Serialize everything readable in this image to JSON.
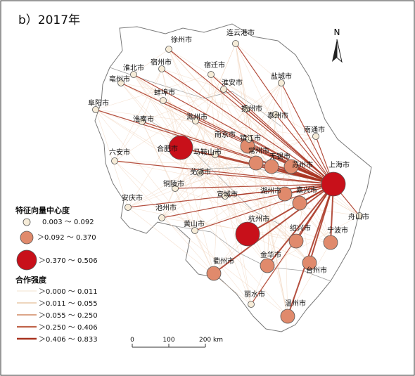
{
  "panel_title": "b）2017年",
  "north_label": "N",
  "colors": {
    "level1_fill": "#f6ecd8",
    "level2_fill": "#e08a6c",
    "level3_fill": "#c8101a",
    "flow_light": "#f1d6c0",
    "flow_dark": "#a8321f",
    "background": "#ffffff"
  },
  "cities": [
    {
      "name": "连云港市",
      "level": 1
    },
    {
      "name": "徐州市",
      "level": 1
    },
    {
      "name": "宿州市",
      "level": 1
    },
    {
      "name": "淮北市",
      "level": 1
    },
    {
      "name": "宿迁市",
      "level": 1
    },
    {
      "name": "盐城市",
      "level": 1
    },
    {
      "name": "亳州市",
      "level": 1
    },
    {
      "name": "淮安市",
      "level": 1
    },
    {
      "name": "蚌埠市",
      "level": 1
    },
    {
      "name": "阜阳市",
      "level": 1
    },
    {
      "name": "扬州市",
      "level": 1
    },
    {
      "name": "泰州市",
      "level": 1
    },
    {
      "name": "淮南市",
      "level": 1
    },
    {
      "name": "滁州市",
      "level": 1
    },
    {
      "name": "南通市",
      "level": 1
    },
    {
      "name": "南京市",
      "level": 2
    },
    {
      "name": "镇江市",
      "level": 1
    },
    {
      "name": "六安市",
      "level": 1
    },
    {
      "name": "合肥市",
      "level": 3
    },
    {
      "name": "马鞍山市",
      "level": 1
    },
    {
      "name": "常州市",
      "level": 2
    },
    {
      "name": "无锡市",
      "level": 2
    },
    {
      "name": "苏州市",
      "level": 2
    },
    {
      "name": "上海市",
      "level": 3
    },
    {
      "name": "芜湖市",
      "level": 1
    },
    {
      "name": "铜陵市",
      "level": 1
    },
    {
      "name": "宣城市",
      "level": 1
    },
    {
      "name": "湖州市",
      "level": 2
    },
    {
      "name": "嘉兴市",
      "level": 2
    },
    {
      "name": "安庆市",
      "level": 1
    },
    {
      "name": "池州市",
      "level": 1
    },
    {
      "name": "舟山市",
      "level": 1
    },
    {
      "name": "黄山市",
      "level": 1
    },
    {
      "name": "杭州市",
      "level": 3
    },
    {
      "name": "绍兴市",
      "level": 2
    },
    {
      "name": "宁波市",
      "level": 2
    },
    {
      "name": "金华市",
      "level": 2
    },
    {
      "name": "衢州市",
      "level": 2
    },
    {
      "name": "台州市",
      "level": 2
    },
    {
      "name": "丽水市",
      "level": 1
    },
    {
      "name": "温州市",
      "level": 2
    }
  ],
  "legend": {
    "node_title": "特征向量中心度",
    "node_classes": [
      "0.003 ～ 0.092",
      "＞0.092 ～ 0.370",
      "＞0.370 ～ 0.506"
    ],
    "edge_title": "合作强度",
    "edge_classes": [
      {
        "label": "＞0.000 ～ 0.011",
        "color": "#f3e3cf"
      },
      {
        "label": "＞0.011 ～ 0.055",
        "color": "#e9c9a8"
      },
      {
        "label": "＞0.055 ～ 0.250",
        "color": "#d79a78"
      },
      {
        "label": "＞0.250 ～ 0.406",
        "color": "#c0634a"
      },
      {
        "label": "＞0.406 ～ 0.833",
        "color": "#a8321f"
      }
    ]
  },
  "scale_bar": {
    "ticks": [
      "0",
      "100",
      "200 km"
    ]
  }
}
